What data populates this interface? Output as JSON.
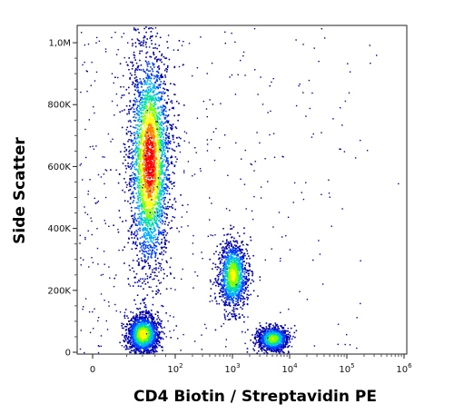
{
  "chart_data": {
    "type": "scatter",
    "subtype": "flow-cytometry density dot plot",
    "xlabel": "CD4 Biotin / Streptavidin PE",
    "ylabel": "Side Scatter",
    "x_scale": "logicle",
    "y_scale": "linear",
    "xlim": [
      0,
      1000000
    ],
    "ylim": [
      0,
      1050000
    ],
    "x_ticks": [
      {
        "value": 0,
        "base": "0",
        "exp": ""
      },
      {
        "value": 100,
        "base": "10",
        "exp": "2"
      },
      {
        "value": 1000,
        "base": "10",
        "exp": "3"
      },
      {
        "value": 10000,
        "base": "10",
        "exp": "4"
      },
      {
        "value": 100000,
        "base": "10",
        "exp": "5"
      },
      {
        "value": 1000000,
        "base": "10",
        "exp": "6"
      }
    ],
    "y_ticks": [
      {
        "value": 0,
        "label": "0"
      },
      {
        "value": 200000,
        "label": "200K"
      },
      {
        "value": 400000,
        "label": "400K"
      },
      {
        "value": 600000,
        "label": "600K"
      },
      {
        "value": 800000,
        "label": "800K"
      },
      {
        "value": 1000000,
        "label": "1,0M"
      }
    ],
    "populations": [
      {
        "x_center": 50,
        "y_center": 620000,
        "x_spread": 18,
        "y_spread": 180000,
        "relative_density": 1.0
      },
      {
        "x_center": 40,
        "y_center": 60000,
        "x_spread": 12,
        "y_spread": 30000,
        "relative_density": 0.45
      },
      {
        "x_center": 1000,
        "y_center": 250000,
        "x_spread": 350,
        "y_spread": 55000,
        "relative_density": 0.3
      },
      {
        "x_center": 5000,
        "y_center": 45000,
        "x_spread": 1800,
        "y_spread": 20000,
        "relative_density": 0.2
      }
    ],
    "color_scale": [
      "#0000b0",
      "#0040ff",
      "#00b0ff",
      "#00e0a0",
      "#80ff00",
      "#ffff00",
      "#ff8000",
      "#ff0000"
    ],
    "grid": false,
    "legend": "none"
  }
}
